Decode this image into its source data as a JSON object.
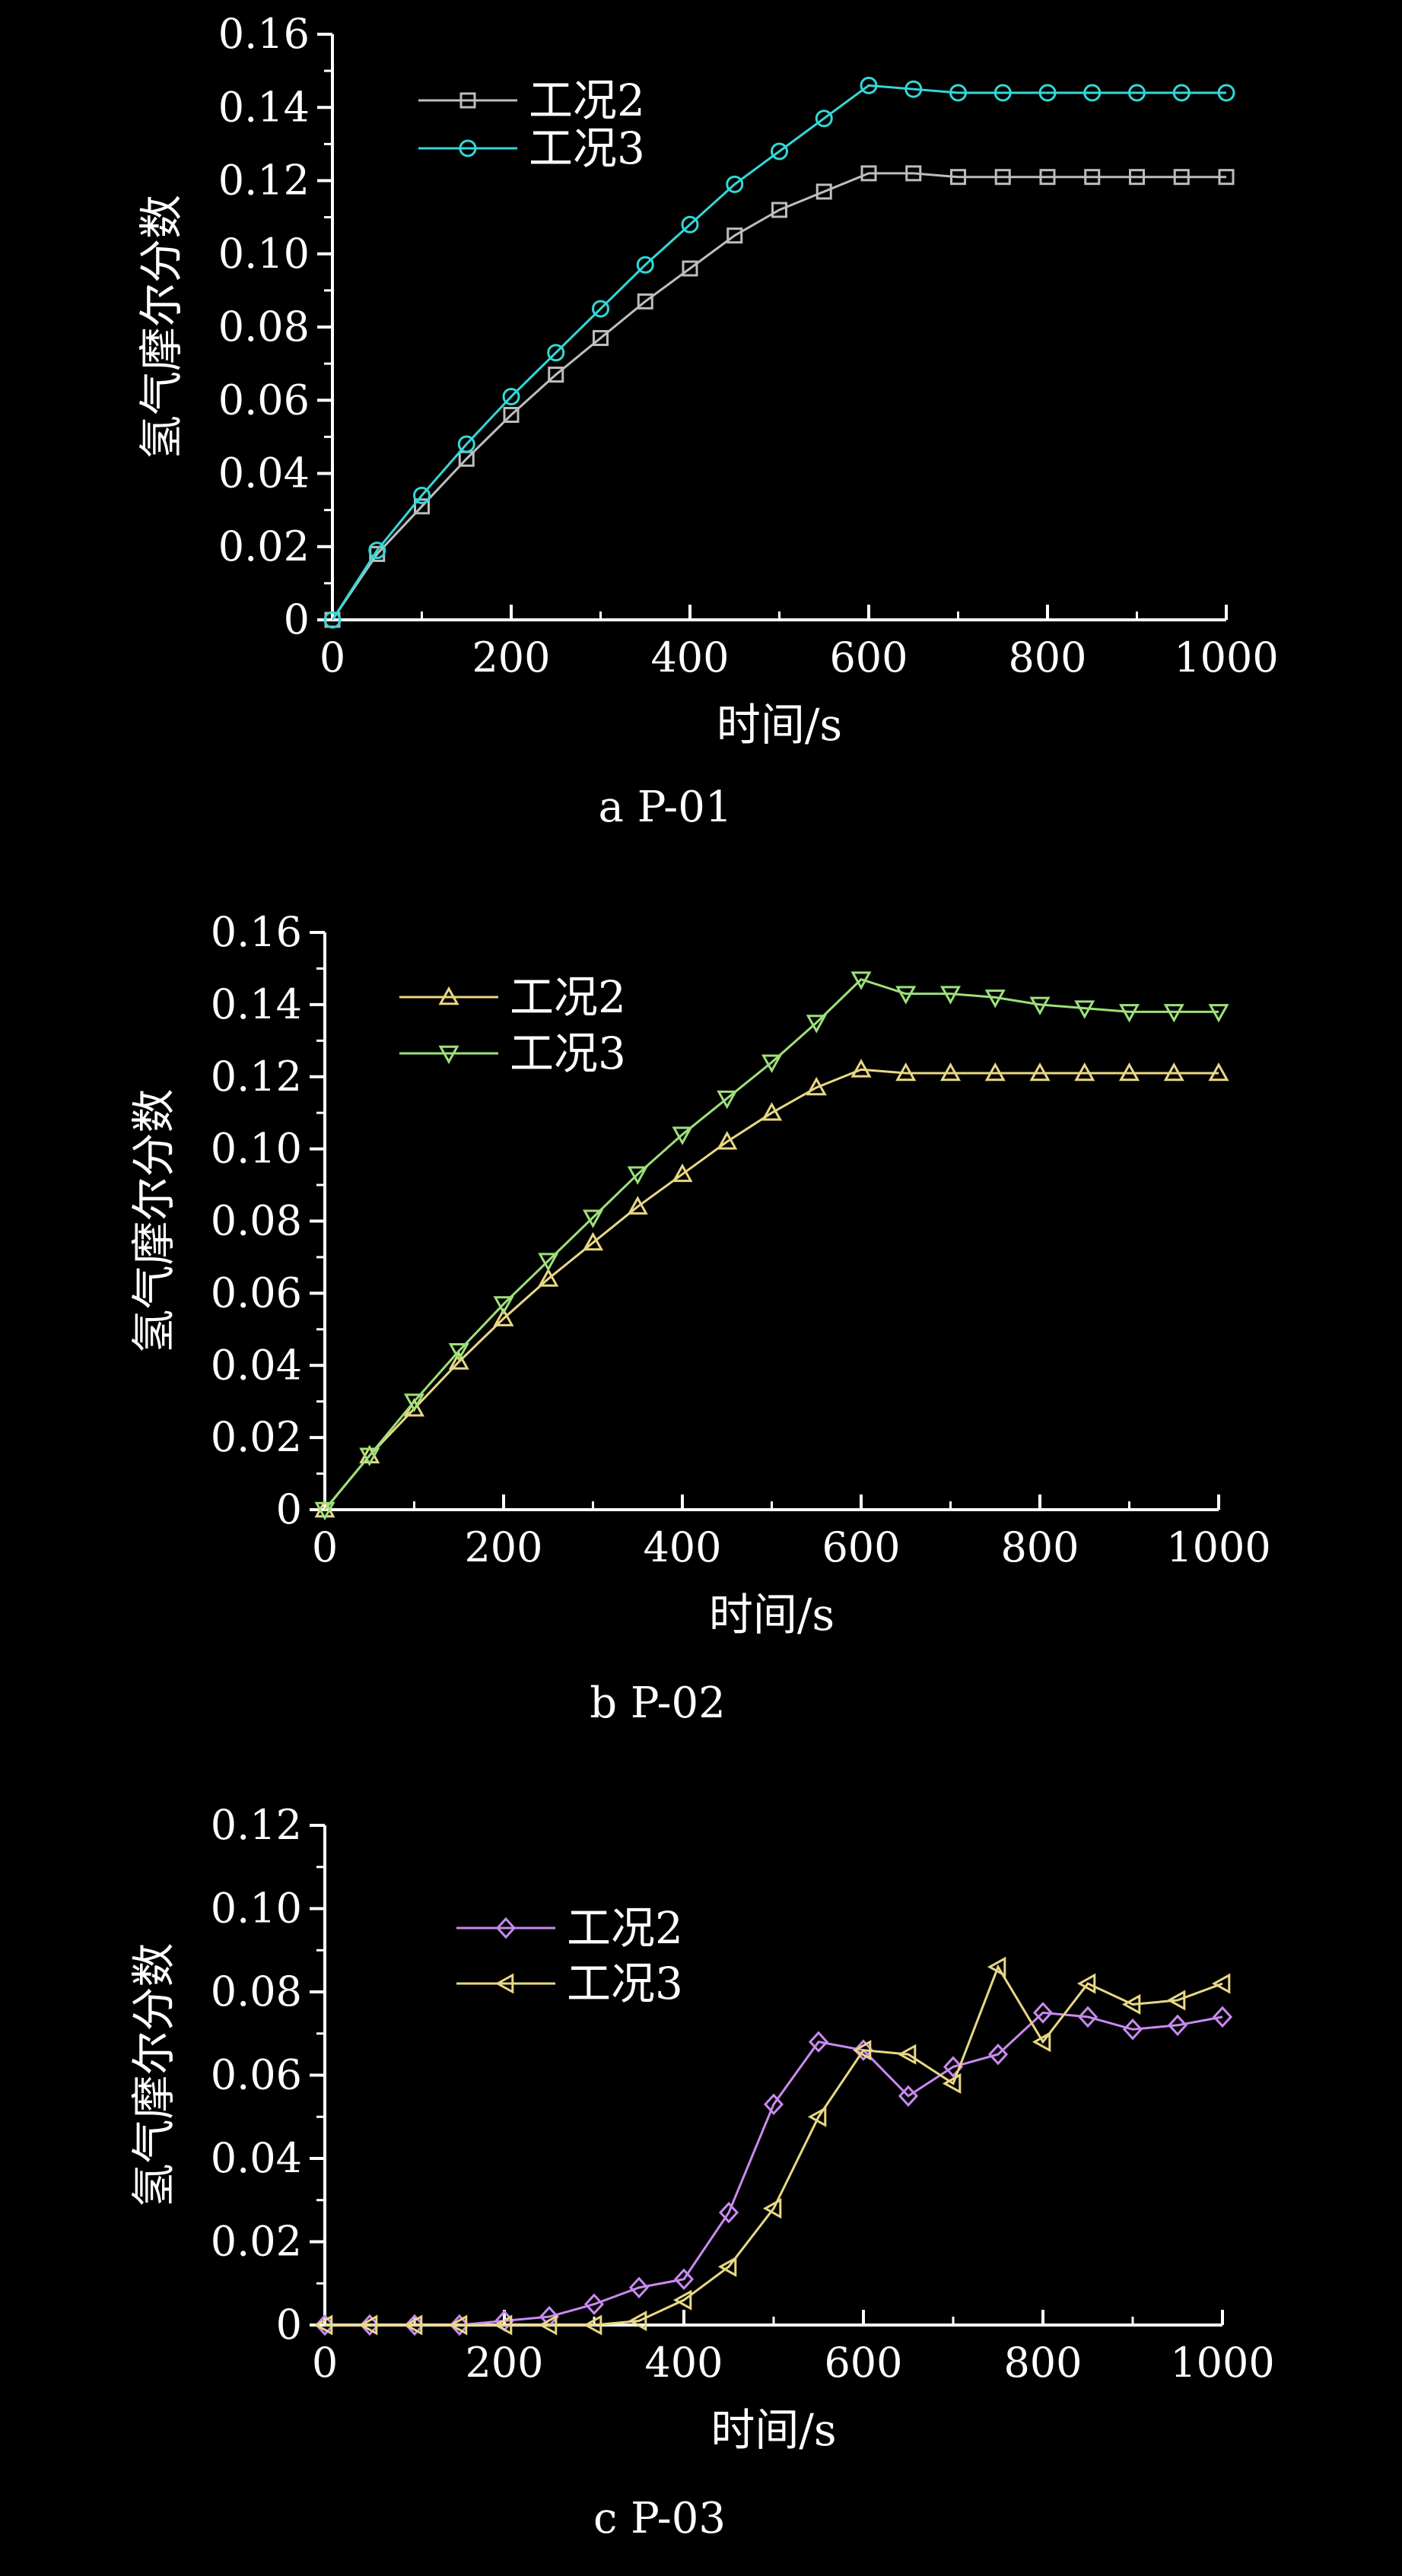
{
  "chart_data": [
    {
      "type": "line",
      "caption": "a  P-01",
      "xlabel": "时间/s",
      "ylabel": "氢气摩尔分数",
      "xlim": [
        0,
        1000
      ],
      "ylim": [
        0,
        0.16
      ],
      "xticks": [
        0,
        200,
        400,
        600,
        800,
        1000
      ],
      "yticks": [
        0,
        0.02,
        0.04,
        0.06,
        0.08,
        0.1,
        0.12,
        0.14,
        0.16
      ],
      "ytick_labels": [
        "0",
        "0.02",
        "0.04",
        "0.06",
        "0.08",
        "0.10",
        "0.12",
        "0.14",
        "0.16"
      ],
      "legend": "top-left",
      "grid": false,
      "x": [
        0,
        50,
        100,
        150,
        200,
        250,
        300,
        350,
        400,
        450,
        500,
        550,
        600,
        650,
        700,
        750,
        800,
        850,
        900,
        950,
        1000
      ],
      "series": [
        {
          "name": "工况2",
          "marker": "square",
          "color": "#bdbdbd",
          "values": [
            0,
            0.018,
            0.031,
            0.044,
            0.056,
            0.067,
            0.077,
            0.087,
            0.096,
            0.105,
            0.112,
            0.117,
            0.122,
            0.122,
            0.121,
            0.121,
            0.121,
            0.121,
            0.121,
            0.121,
            0.121
          ]
        },
        {
          "name": "工况3",
          "marker": "circle",
          "color": "#33d8d8",
          "values": [
            0,
            0.019,
            0.034,
            0.048,
            0.061,
            0.073,
            0.085,
            0.097,
            0.108,
            0.119,
            0.128,
            0.137,
            0.146,
            0.145,
            0.144,
            0.144,
            0.144,
            0.144,
            0.144,
            0.144,
            0.144
          ]
        }
      ]
    },
    {
      "type": "line",
      "caption": "b  P-02",
      "xlabel": "时间/s",
      "ylabel": "氢气摩尔分数",
      "xlim": [
        0,
        1000
      ],
      "ylim": [
        0,
        0.16
      ],
      "xticks": [
        0,
        200,
        400,
        600,
        800,
        1000
      ],
      "yticks": [
        0,
        0.02,
        0.04,
        0.06,
        0.08,
        0.1,
        0.12,
        0.14,
        0.16
      ],
      "ytick_labels": [
        "0",
        "0.02",
        "0.04",
        "0.06",
        "0.08",
        "0.10",
        "0.12",
        "0.14",
        "0.16"
      ],
      "legend": "top-left",
      "grid": false,
      "x": [
        0,
        50,
        100,
        150,
        200,
        250,
        300,
        350,
        400,
        450,
        500,
        550,
        600,
        650,
        700,
        750,
        800,
        850,
        900,
        950,
        1000
      ],
      "series": [
        {
          "name": "工况2",
          "marker": "triangle-up",
          "color": "#e8d884",
          "values": [
            0,
            0.015,
            0.028,
            0.041,
            0.053,
            0.064,
            0.074,
            0.084,
            0.093,
            0.102,
            0.11,
            0.117,
            0.122,
            0.121,
            0.121,
            0.121,
            0.121,
            0.121,
            0.121,
            0.121,
            0.121
          ]
        },
        {
          "name": "工况3",
          "marker": "triangle-down",
          "color": "#9ee07a",
          "values": [
            0,
            0.015,
            0.03,
            0.044,
            0.057,
            0.069,
            0.081,
            0.093,
            0.104,
            0.114,
            0.124,
            0.135,
            0.147,
            0.143,
            0.143,
            0.142,
            0.14,
            0.139,
            0.138,
            0.138,
            0.138
          ]
        }
      ]
    },
    {
      "type": "line",
      "caption": "c  P-03",
      "xlabel": "时间/s",
      "ylabel": "氢气摩尔分数",
      "xlim": [
        0,
        1000
      ],
      "ylim": [
        0,
        0.12
      ],
      "xticks": [
        0,
        200,
        400,
        600,
        800,
        1000
      ],
      "yticks": [
        0,
        0.02,
        0.04,
        0.06,
        0.08,
        0.1,
        0.12
      ],
      "ytick_labels": [
        "0",
        "0.02",
        "0.04",
        "0.06",
        "0.08",
        "0.10",
        "0.12"
      ],
      "legend": "top-left",
      "grid": false,
      "x": [
        0,
        50,
        100,
        150,
        200,
        250,
        300,
        350,
        400,
        450,
        500,
        550,
        600,
        650,
        700,
        750,
        800,
        850,
        900,
        950,
        1000
      ],
      "series": [
        {
          "name": "工况2",
          "marker": "diamond",
          "color": "#c98af0",
          "values": [
            0,
            0,
            0,
            0,
            0.001,
            0.002,
            0.005,
            0.009,
            0.011,
            0.027,
            0.053,
            0.068,
            0.066,
            0.055,
            0.062,
            0.065,
            0.075,
            0.074,
            0.071,
            0.072,
            0.074
          ]
        },
        {
          "name": "工况3",
          "marker": "triangle-left",
          "color": "#e8d884",
          "values": [
            0,
            0,
            0,
            0,
            0,
            0,
            0,
            0.001,
            0.006,
            0.014,
            0.028,
            0.05,
            0.066,
            0.065,
            0.058,
            0.086,
            0.068,
            0.082,
            0.077,
            0.078,
            0.082
          ]
        }
      ]
    }
  ]
}
